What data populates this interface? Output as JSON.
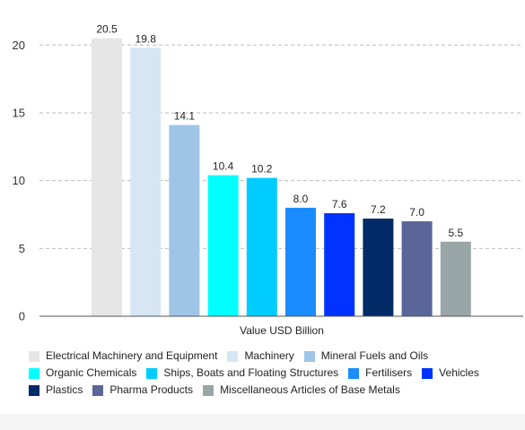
{
  "chart_data": {
    "type": "bar",
    "xlabel": "Value USD Billion",
    "ylabel": "",
    "ylim": [
      0,
      22
    ],
    "yticks": [
      0,
      5,
      10,
      15,
      20
    ],
    "grid": true,
    "legend_position": "bottom",
    "categories": [
      "Electrical Machinery and Equipment",
      "Machinery",
      "Mineral Fuels and Oils",
      "Organic Chemicals",
      "Ships, Boats and Floating Structures",
      "Fertilisers",
      "Vehicles",
      "Plastics",
      "Pharma Products",
      "Miscellaneous Articles of Base Metals"
    ],
    "values": [
      20.5,
      19.8,
      14.1,
      10.4,
      10.2,
      8.0,
      7.6,
      7.2,
      7.0,
      5.5
    ],
    "value_labels": [
      "20.5",
      "19.8",
      "14.1",
      "10.4",
      "10.2",
      "8.0",
      "7.6",
      "7.2",
      "7.0",
      "5.5"
    ],
    "colors": [
      "#e6e6e6",
      "#d6e6f5",
      "#9fc5e6",
      "#00ffff",
      "#00ccff",
      "#1a8cff",
      "#0033ff",
      "#002b66",
      "#5a6699",
      "#99a6a8"
    ],
    "legend_rows": [
      [
        0,
        1,
        2
      ],
      [
        3,
        4,
        5,
        6
      ],
      [
        7,
        8,
        9
      ]
    ]
  }
}
